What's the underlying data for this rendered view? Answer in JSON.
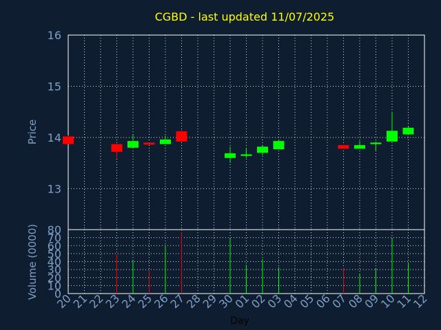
{
  "chart_data": [
    {
      "type": "candlestick",
      "title": "CGBD - last updated 11/07/2025",
      "ylabel": "Price",
      "ylim": [
        12.2,
        16
      ],
      "yticks": [
        "13",
        "14",
        "15",
        "16"
      ],
      "grid": true,
      "colors": {
        "up": "#00ff00",
        "down": "#ff0000",
        "title": "#ffff00",
        "axis_text": "#7f9fc6",
        "grid": "#ffffff",
        "background": "#0e1e30"
      },
      "x": [
        "20",
        "21",
        "22",
        "23",
        "24",
        "25",
        "26",
        "27",
        "28",
        "29",
        "30",
        "01",
        "02",
        "03",
        "04",
        "05",
        "06",
        "07",
        "08",
        "09",
        "10",
        "11",
        "12"
      ],
      "candles": [
        {
          "day": "20",
          "open": 14.02,
          "high": 14.04,
          "low": 13.87,
          "close": 13.87
        },
        {
          "day": "23",
          "open": 13.87,
          "high": 13.87,
          "low": 13.6,
          "close": 13.72
        },
        {
          "day": "24",
          "open": 13.8,
          "high": 14.05,
          "low": 13.8,
          "close": 13.93
        },
        {
          "day": "25",
          "open": 13.9,
          "high": 13.9,
          "low": 13.86,
          "close": 13.86
        },
        {
          "day": "26",
          "open": 13.87,
          "high": 14.04,
          "low": 13.87,
          "close": 13.96
        },
        {
          "day": "27",
          "open": 14.12,
          "high": 14.14,
          "low": 13.92,
          "close": 13.92
        },
        {
          "day": "30",
          "open": 13.6,
          "high": 13.82,
          "low": 13.5,
          "close": 13.69
        },
        {
          "day": "01",
          "open": 13.64,
          "high": 13.8,
          "low": 13.6,
          "close": 13.67
        },
        {
          "day": "02",
          "open": 13.7,
          "high": 13.84,
          "low": 13.65,
          "close": 13.82
        },
        {
          "day": "03",
          "open": 13.77,
          "high": 13.96,
          "low": 13.77,
          "close": 13.93
        },
        {
          "day": "07",
          "open": 13.85,
          "high": 13.85,
          "low": 13.78,
          "close": 13.78
        },
        {
          "day": "08",
          "open": 13.78,
          "high": 13.93,
          "low": 13.78,
          "close": 13.85
        },
        {
          "day": "09",
          "open": 13.87,
          "high": 13.92,
          "low": 13.75,
          "close": 13.9
        },
        {
          "day": "10",
          "open": 13.92,
          "high": 14.5,
          "low": 13.92,
          "close": 14.13
        },
        {
          "day": "11",
          "open": 14.06,
          "high": 14.22,
          "low": 14.06,
          "close": 14.19
        }
      ]
    },
    {
      "type": "bar",
      "ylabel": "Volume (0000)",
      "xlabel": "Day",
      "ylim": [
        0,
        80
      ],
      "yticks": [
        "0",
        "10",
        "20",
        "30",
        "40",
        "50",
        "60",
        "70",
        "80"
      ],
      "grid": true,
      "categories": [
        "23",
        "24",
        "25",
        "26",
        "27",
        "30",
        "01",
        "02",
        "03",
        "07",
        "08",
        "09",
        "10",
        "11"
      ],
      "values": [
        49,
        41,
        29,
        60,
        77,
        69,
        36,
        43,
        33,
        32,
        24,
        31,
        69,
        39
      ],
      "directions": [
        "down",
        "up",
        "down",
        "up",
        "down",
        "up",
        "up",
        "up",
        "up",
        "down",
        "up",
        "up",
        "up",
        "up"
      ]
    }
  ]
}
